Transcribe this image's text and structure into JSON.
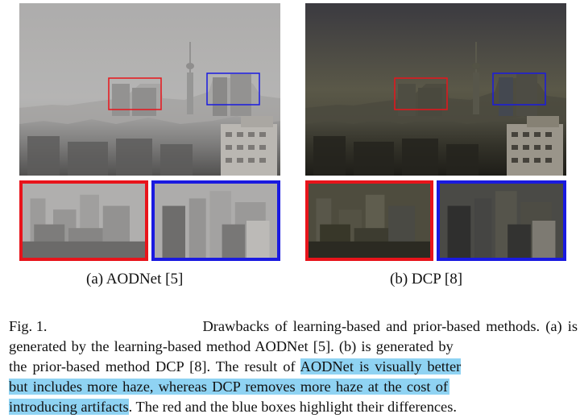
{
  "subfigures": [
    {
      "caption": "(a)  AODNet [5]"
    },
    {
      "caption": "(b)  DCP [8]"
    }
  ],
  "figure_caption": {
    "label": "Fig. 1.",
    "text_1": "Drawbacks of learning-based and prior-based methods. (a) is",
    "text_2": "generated by the learning-based method AODNet [5]. (b) is generated by",
    "text_3a": "the prior-based method DCP [8]. The result of ",
    "highlight_1": "AODNet is visually better",
    "highlight_2": "but includes more haze, whereas DCP removes more haze at the cost of",
    "highlight_3": "introducing artifacts",
    "text_5b": ". The red and the blue boxes highlight their differences."
  },
  "colors": {
    "red_box": "#e8141b",
    "blue_box": "#1a1ae0",
    "highlight": "#8fd3f3"
  }
}
